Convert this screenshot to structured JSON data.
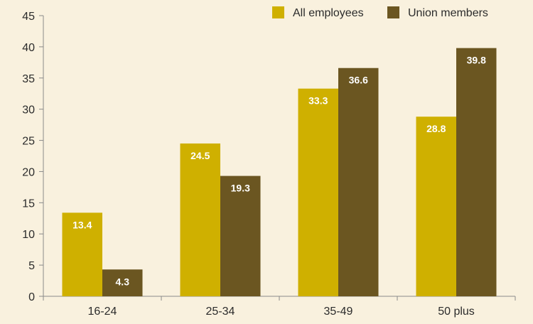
{
  "chart_data": {
    "type": "bar",
    "title": "",
    "xlabel": "",
    "ylabel": "",
    "categories": [
      "16-24",
      "25-34",
      "35-49",
      "50 plus"
    ],
    "series": [
      {
        "name": "All employees",
        "values": [
          13.4,
          24.5,
          33.3,
          28.8
        ],
        "color": "#cfb000"
      },
      {
        "name": "Union members",
        "values": [
          4.3,
          19.3,
          36.6,
          39.8
        ],
        "color": "#6b5621"
      }
    ],
    "ylim": [
      0,
      45
    ],
    "yticks": [
      0,
      5,
      10,
      15,
      20,
      25,
      30,
      35,
      40,
      45
    ],
    "grid": false,
    "legend_position": "top-right",
    "data_labels": true
  },
  "colors": {
    "background": "#f9f1de",
    "axis": "#8a8a8a",
    "text": "#2b2b2b",
    "data_label": "#ffffff"
  }
}
